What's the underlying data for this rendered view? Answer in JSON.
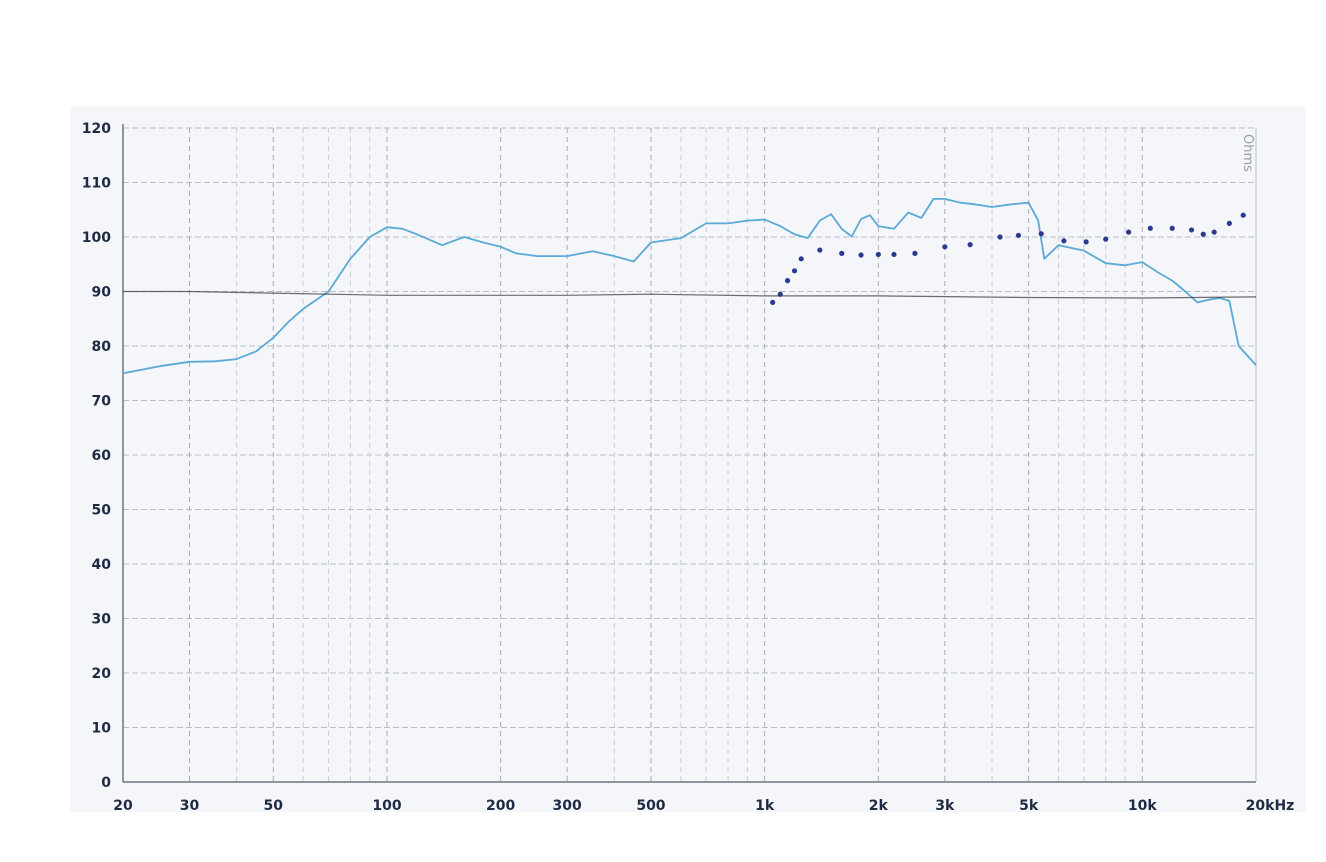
{
  "chart_data": {
    "type": "line",
    "title": "",
    "xlabel": "",
    "ylabel": "",
    "x_scale": "log",
    "xlim": [
      20,
      20000
    ],
    "ylim": [
      0,
      120
    ],
    "grid": true,
    "legend": "none",
    "y_ticks": [
      0,
      10,
      20,
      30,
      40,
      50,
      60,
      70,
      80,
      90,
      100,
      110,
      120
    ],
    "x_ticks": [
      {
        "value": 20,
        "label": "20"
      },
      {
        "value": 30,
        "label": "30"
      },
      {
        "value": 50,
        "label": "50"
      },
      {
        "value": 100,
        "label": "100"
      },
      {
        "value": 200,
        "label": "200"
      },
      {
        "value": 300,
        "label": "300"
      },
      {
        "value": 500,
        "label": "500"
      },
      {
        "value": 1000,
        "label": "1k"
      },
      {
        "value": 2000,
        "label": "2k"
      },
      {
        "value": 3000,
        "label": "3k"
      },
      {
        "value": 5000,
        "label": "5k"
      },
      {
        "value": 10000,
        "label": "10k"
      },
      {
        "value": 20000,
        "label": "20kHz"
      }
    ],
    "right_axis_label": "Ohms",
    "series": [
      {
        "style": "solid",
        "color": "#5aa9d6",
        "x": [
          20,
          25,
          30,
          35,
          40,
          45,
          50,
          55,
          60,
          70,
          80,
          90,
          100,
          110,
          120,
          140,
          160,
          180,
          200,
          220,
          250,
          300,
          350,
          400,
          450,
          500,
          600,
          700,
          800,
          900,
          1000,
          1100,
          1200,
          1300,
          1400,
          1500,
          1600,
          1700,
          1800,
          1900,
          2000,
          2200,
          2400,
          2600,
          2800,
          3000,
          3300,
          3600,
          4000,
          4500,
          5000,
          5300,
          5500,
          6000,
          7000,
          8000,
          9000,
          10000,
          11000,
          12000,
          13000,
          14000,
          15000,
          16000,
          17000,
          18000,
          20000
        ],
        "y": [
          75,
          76.3,
          77.1,
          77.2,
          77.6,
          79,
          81.5,
          84.5,
          86.8,
          90,
          96,
          100,
          101.8,
          101.5,
          100.5,
          98.5,
          100,
          99,
          98.2,
          97,
          96.5,
          96.5,
          97.4,
          96.5,
          95.5,
          99,
          99.8,
          102.5,
          102.5,
          103,
          103.2,
          102,
          100.5,
          99.8,
          103,
          104.2,
          101.5,
          100.1,
          103.3,
          104,
          102,
          101.5,
          104.5,
          103.5,
          107,
          107,
          106.3,
          106,
          105.5,
          106,
          106.3,
          103,
          96,
          98.5,
          97.5,
          95.2,
          94.8,
          95.4,
          93.5,
          92,
          90,
          88,
          88.5,
          88.8,
          88.3,
          80,
          76.5
        ]
      },
      {
        "style": "dotted",
        "color": "#2b3a8f",
        "x": [
          1050,
          1100,
          1150,
          1200,
          1250,
          1400,
          1600,
          1800,
          2000,
          2200,
          2500,
          3000,
          3500,
          4200,
          4700,
          5400,
          6200,
          7100,
          8000,
          9200,
          10500,
          12000,
          13500,
          14500,
          15500,
          17000,
          18500
        ],
        "y": [
          88,
          89.5,
          92,
          93.8,
          96,
          97.6,
          97,
          96.7,
          96.8,
          96.8,
          97,
          98.2,
          98.6,
          100,
          100.3,
          100.6,
          99.3,
          99.1,
          99.6,
          100.9,
          101.6,
          101.6,
          101.3,
          100.5,
          100.9,
          102.5,
          104
        ]
      },
      {
        "style": "solid",
        "color": "#3c3c3c",
        "x": [
          20,
          30,
          50,
          100,
          300,
          500,
          1000,
          2000,
          5000,
          10000,
          20000
        ],
        "y": [
          90,
          90,
          89.7,
          89.3,
          89.3,
          89.5,
          89.2,
          89.2,
          88.9,
          88.8,
          89
        ]
      }
    ]
  }
}
